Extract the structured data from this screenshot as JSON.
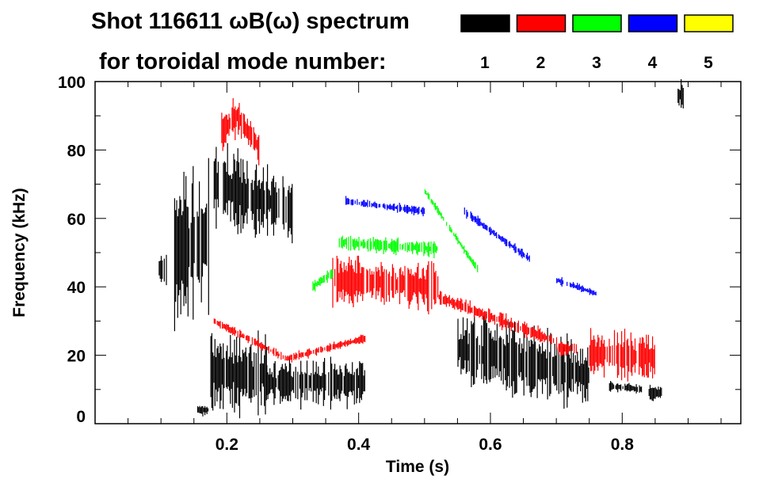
{
  "chart_data": {
    "type": "heatmap",
    "title": "Shot 116611 ωB(ω) spectrum",
    "legend_title": "for toroidal mode number:",
    "legend_placement": "top-right",
    "legend": [
      {
        "label": "1",
        "color": "#000000"
      },
      {
        "label": "2",
        "color": "#ff0000"
      },
      {
        "label": "3",
        "color": "#00ff00"
      },
      {
        "label": "4",
        "color": "#0000ff"
      },
      {
        "label": "5",
        "color": "#ffff00"
      }
    ],
    "xlabel": "Time (s)",
    "ylabel": "Frequency (kHz)",
    "xlim": [
      0,
      0.98
    ],
    "ylim": [
      0,
      100
    ],
    "xticks": [
      0.2,
      0.4,
      0.6,
      0.8
    ],
    "xtick_labels": [
      "0.2",
      "0.4",
      "0.6",
      "0.8"
    ],
    "yticks": [
      0,
      20,
      40,
      60,
      80,
      100
    ],
    "ytick_labels": [
      "0",
      "20",
      "40",
      "60",
      "80",
      "100"
    ],
    "features": [
      {
        "mode": 1,
        "t": [
          0.095,
          0.108
        ],
        "f_center": [
          45,
          45
        ],
        "spread": 4
      },
      {
        "mode": 1,
        "t": [
          0.12,
          0.172
        ],
        "f_center": [
          50,
          55
        ],
        "spread": 18
      },
      {
        "mode": 1,
        "t": [
          0.155,
          0.172
        ],
        "f_center": [
          4,
          4
        ],
        "spread": 1.5
      },
      {
        "mode": 1,
        "t": [
          0.18,
          0.25
        ],
        "f_center": [
          70,
          65
        ],
        "spread": 10
      },
      {
        "mode": 1,
        "t": [
          0.25,
          0.3
        ],
        "f_center": [
          66,
          62
        ],
        "spread": 8
      },
      {
        "mode": 1,
        "t": [
          0.175,
          0.26
        ],
        "f_center": [
          15,
          14
        ],
        "spread": 10
      },
      {
        "mode": 1,
        "t": [
          0.26,
          0.41
        ],
        "f_center": [
          12,
          12
        ],
        "spread": 6
      },
      {
        "mode": 1,
        "t": [
          0.55,
          0.75
        ],
        "f_center": [
          22,
          14
        ],
        "spread": 9
      },
      {
        "mode": 1,
        "t": [
          0.78,
          0.83
        ],
        "f_center": [
          11,
          10
        ],
        "spread": 1.2
      },
      {
        "mode": 1,
        "t": [
          0.84,
          0.86
        ],
        "f_center": [
          9,
          9
        ],
        "spread": 2
      },
      {
        "mode": 1,
        "t": [
          0.884,
          0.892
        ],
        "f_center": [
          96,
          96
        ],
        "spread": 4
      },
      {
        "mode": 2,
        "t": [
          0.19,
          0.215
        ],
        "f_center": [
          85,
          90
        ],
        "spread": 5
      },
      {
        "mode": 2,
        "t": [
          0.215,
          0.25
        ],
        "f_center": [
          90,
          80
        ],
        "spread": 4
      },
      {
        "mode": 2,
        "t": [
          0.18,
          0.29
        ],
        "f_center": [
          30,
          19
        ],
        "spread": 1.2
      },
      {
        "mode": 2,
        "t": [
          0.29,
          0.41
        ],
        "f_center": [
          19,
          25
        ],
        "spread": 1.2
      },
      {
        "mode": 2,
        "t": [
          0.36,
          0.52
        ],
        "f_center": [
          42,
          40
        ],
        "spread": 6
      },
      {
        "mode": 2,
        "t": [
          0.52,
          0.7
        ],
        "f_center": [
          37,
          24
        ],
        "spread": 2
      },
      {
        "mode": 2,
        "t": [
          0.7,
          0.73
        ],
        "f_center": [
          22,
          22
        ],
        "spread": 2
      },
      {
        "mode": 2,
        "t": [
          0.75,
          0.85
        ],
        "f_center": [
          21,
          19
        ],
        "spread": 6
      },
      {
        "mode": 3,
        "t": [
          0.33,
          0.36
        ],
        "f_center": [
          40,
          44
        ],
        "spread": 1.5
      },
      {
        "mode": 3,
        "t": [
          0.37,
          0.52
        ],
        "f_center": [
          53,
          51
        ],
        "spread": 2
      },
      {
        "mode": 3,
        "t": [
          0.5,
          0.58
        ],
        "f_center": [
          68,
          45
        ],
        "spread": 1
      },
      {
        "mode": 4,
        "t": [
          0.38,
          0.5
        ],
        "f_center": [
          65,
          62
        ],
        "spread": 1.2
      },
      {
        "mode": 4,
        "t": [
          0.56,
          0.66
        ],
        "f_center": [
          62,
          48
        ],
        "spread": 1.2
      },
      {
        "mode": 4,
        "t": [
          0.7,
          0.76
        ],
        "f_center": [
          42,
          38
        ],
        "spread": 1
      }
    ]
  }
}
